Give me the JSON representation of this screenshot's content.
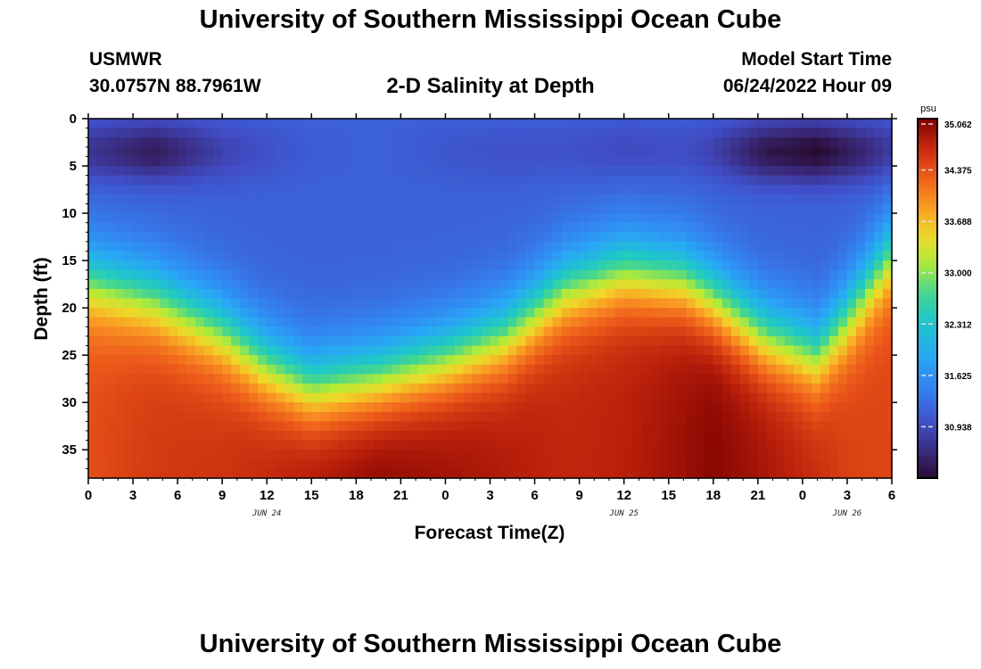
{
  "header": {
    "title": "University of Southern Mississippi Ocean Cube",
    "station": "USMWR",
    "coords": "30.0757N  88.7961W",
    "subtitle": "2-D Salinity at Depth",
    "model_label": "Model Start Time",
    "model_time": "06/24/2022 Hour 09"
  },
  "footer": {
    "title": "University of Southern Mississippi Ocean Cube"
  },
  "chart_data": {
    "type": "heatmap",
    "title": "2-D Salinity at Depth",
    "xlabel": "Forecast Time(Z)",
    "ylabel": "Depth (ft)",
    "x_tick_labels": [
      "0",
      "3",
      "6",
      "9",
      "12",
      "15",
      "18",
      "21",
      "0",
      "3",
      "6",
      "9",
      "12",
      "15",
      "18",
      "21",
      "0",
      "3",
      "6"
    ],
    "x_range_hours": [
      0,
      54
    ],
    "date_labels": [
      {
        "text": "JUN 24",
        "hour": 12
      },
      {
        "text": "JUN 25",
        "hour": 36
      },
      {
        "text": "JUN 26",
        "hour": 51
      }
    ],
    "y_ticks": [
      0,
      5,
      10,
      15,
      20,
      25,
      30,
      35
    ],
    "y_range_ft": [
      0,
      38
    ],
    "y_inverted": true,
    "colorbar": {
      "unit": "psu",
      "ticks": [
        "35.062",
        "34.375",
        "33.688",
        "33.000",
        "32.312",
        "31.625",
        "30.938"
      ],
      "min": 30.25,
      "max": 35.062
    },
    "profiles": {
      "hours": [
        0,
        4.5,
        9,
        12,
        15,
        19.5,
        24,
        28,
        32,
        36,
        40,
        42,
        45.5,
        49,
        51,
        54
      ],
      "surface_salinity": [
        30.7,
        30.45,
        30.85,
        31.0,
        31.1,
        31.15,
        31.05,
        31.0,
        31.0,
        30.9,
        30.95,
        30.85,
        30.4,
        30.25,
        30.45,
        30.75
      ],
      "halocline_depth_ft": [
        17,
        19,
        22.5,
        26,
        28.5,
        27.5,
        25.5,
        23,
        18,
        16,
        17,
        19,
        23,
        25,
        21,
        14
      ],
      "bottom_salinity": [
        34.4,
        34.55,
        34.6,
        34.7,
        34.85,
        35.0,
        34.9,
        34.8,
        34.7,
        34.75,
        34.9,
        35.0,
        34.85,
        34.65,
        34.5,
        34.45
      ]
    }
  }
}
